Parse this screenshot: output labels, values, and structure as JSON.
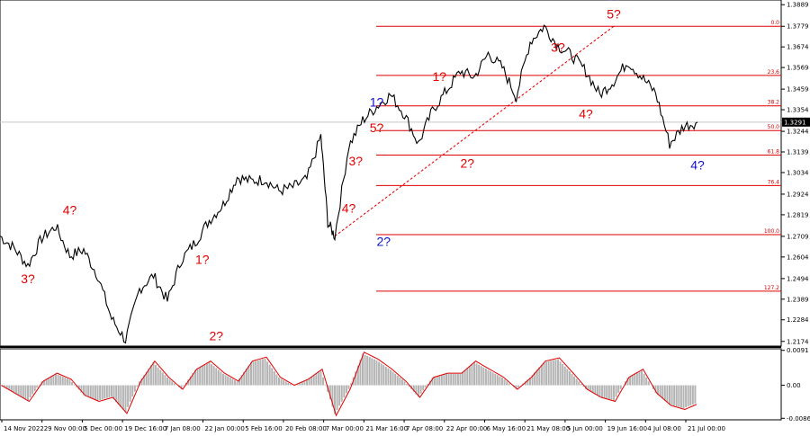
{
  "chart_data": [
    {
      "type": "line",
      "panel": "price",
      "current_price": "1.3291",
      "ylim": [
        1.215,
        1.389
      ],
      "y_ticks": [
        "1.3889",
        "1.3779",
        "1.3674",
        "1.3569",
        "1.3459",
        "1.3354",
        "1.3244",
        "1.3139",
        "1.3034",
        "1.2924",
        "1.2819",
        "1.2709",
        "1.2604",
        "1.2494",
        "1.2389",
        "1.2284",
        "1.2174"
      ],
      "x_ticks": [
        "14 Nov 2022",
        "29 Nov 00:00",
        "5 Dec 00:00",
        "19 Dec 16:00",
        "7 Jan 08:00",
        "22 Jan 00:00",
        "5 Feb 16:00",
        "20 Feb 08:00",
        "7 Mar 00:00",
        "21 Mar 16:00",
        "7 Apr 08:00",
        "22 Apr 00:00",
        "6 May 16:00",
        "21 May 08:00",
        "5 Jun 00:00",
        "19 Jun 16:00",
        "4 Jul 08:00",
        "21 Jul 00:00"
      ],
      "x_range": [
        0,
        100
      ],
      "series": [
        {
          "x": [
            0,
            2,
            4,
            6,
            8,
            10,
            12,
            14,
            16,
            18,
            20,
            22,
            24,
            26,
            28,
            30,
            32,
            34,
            36,
            38,
            40,
            42,
            44,
            46,
            47,
            48,
            50,
            52,
            54,
            56,
            58,
            60,
            62,
            64,
            66,
            68,
            70,
            72,
            74,
            76,
            78,
            80,
            82,
            84,
            86,
            88,
            90,
            92,
            94,
            96,
            98,
            100
          ],
          "y": [
            1.271,
            1.265,
            1.256,
            1.27,
            1.276,
            1.261,
            1.264,
            1.251,
            1.229,
            1.218,
            1.244,
            1.251,
            1.238,
            1.259,
            1.268,
            1.279,
            1.287,
            1.301,
            1.299,
            1.3,
            1.294,
            1.296,
            1.3,
            1.322,
            1.278,
            1.271,
            1.317,
            1.33,
            1.337,
            1.343,
            1.333,
            1.318,
            1.335,
            1.345,
            1.355,
            1.352,
            1.364,
            1.357,
            1.342,
            1.37,
            1.3779,
            1.368,
            1.363,
            1.355,
            1.343,
            1.35,
            1.36,
            1.352,
            1.344,
            1.318,
            1.327,
            1.3291
          ]
        }
      ],
      "fibonacci": [
        {
          "label": "0.0",
          "price": 1.3779
        },
        {
          "label": "23.6",
          "price": 1.3529
        },
        {
          "label": "38.2",
          "price": 1.3374
        },
        {
          "label": "50.0",
          "price": 1.3248
        },
        {
          "label": "61.8",
          "price": 1.3123
        },
        {
          "label": "76.4",
          "price": 1.2968
        },
        {
          "label": "100.0",
          "price": 1.2718
        },
        {
          "label": "127.2",
          "price": 1.243
        }
      ],
      "wave_labels": [
        {
          "text": "4?",
          "x": 10,
          "y": 1.282,
          "color": "#e00000"
        },
        {
          "text": "3?",
          "x": 4,
          "y": 1.247,
          "color": "#e00000"
        },
        {
          "text": "1?",
          "x": 29,
          "y": 1.257,
          "color": "#e00000"
        },
        {
          "text": "2?",
          "x": 31,
          "y": 1.218,
          "color": "#e00000"
        },
        {
          "text": "3?",
          "x": 51,
          "y": 1.307,
          "color": "#e00000"
        },
        {
          "text": "4?",
          "x": 50,
          "y": 1.283,
          "color": "#e00000"
        },
        {
          "text": "1?",
          "x": 54,
          "y": 1.337,
          "color": "#1010d0"
        },
        {
          "text": "5?",
          "x": 54,
          "y": 1.324,
          "color": "#e00000"
        },
        {
          "text": "2?",
          "x": 55,
          "y": 1.266,
          "color": "#1010d0"
        },
        {
          "text": "1?",
          "x": 63,
          "y": 1.35,
          "color": "#e00000"
        },
        {
          "text": "2?",
          "x": 67,
          "y": 1.306,
          "color": "#e00000"
        },
        {
          "text": "3?",
          "x": 80,
          "y": 1.365,
          "color": "#e00000"
        },
        {
          "text": "4?",
          "x": 84,
          "y": 1.331,
          "color": "#e00000"
        },
        {
          "text": "3?",
          "x": 88,
          "y": 1.391,
          "color": "#1010d0"
        },
        {
          "text": "5?",
          "x": 88,
          "y": 1.382,
          "color": "#e00000"
        },
        {
          "text": "4?",
          "x": 100,
          "y": 1.305,
          "color": "#1010d0"
        }
      ],
      "colors": {
        "fib_line": "#e00000",
        "price": "#000000",
        "ref_line": "#c8c8c8",
        "badge": "#000000"
      }
    },
    {
      "type": "area",
      "panel": "oscillator",
      "y_ticks": [
        "0.0091",
        "0.00",
        "-0.0086"
      ],
      "ylim": [
        -0.009,
        0.0095
      ],
      "x": [
        0,
        2,
        4,
        6,
        8,
        10,
        12,
        14,
        16,
        18,
        20,
        22,
        24,
        26,
        28,
        30,
        32,
        34,
        36,
        38,
        40,
        42,
        44,
        46,
        48,
        50,
        52,
        54,
        56,
        58,
        60,
        62,
        64,
        66,
        68,
        70,
        72,
        74,
        76,
        78,
        80,
        82,
        84,
        86,
        88,
        90,
        92,
        94,
        96,
        98,
        100
      ],
      "series": [
        {
          "name": "",
          "values": [
            0.0,
            -0.002,
            -0.004,
            0.001,
            0.003,
            0.0015,
            -0.0025,
            -0.004,
            -0.003,
            -0.007,
            0.001,
            0.006,
            0.002,
            -0.001,
            0.004,
            0.006,
            0.003,
            0.001,
            0.006,
            0.007,
            0.002,
            0.0,
            0.0015,
            0.004,
            -0.0075,
            -0.001,
            0.0082,
            0.0065,
            0.004,
            0.001,
            -0.003,
            0.002,
            0.003,
            0.003,
            0.006,
            0.004,
            0.002,
            -0.001,
            0.002,
            0.006,
            0.0068,
            0.003,
            -0.001,
            -0.003,
            -0.004,
            0.002,
            0.004,
            -0.002,
            -0.005,
            -0.006,
            -0.0045
          ]
        }
      ],
      "colors": {
        "histogram": "#b4b4b4",
        "signal": "#e00000"
      }
    }
  ]
}
